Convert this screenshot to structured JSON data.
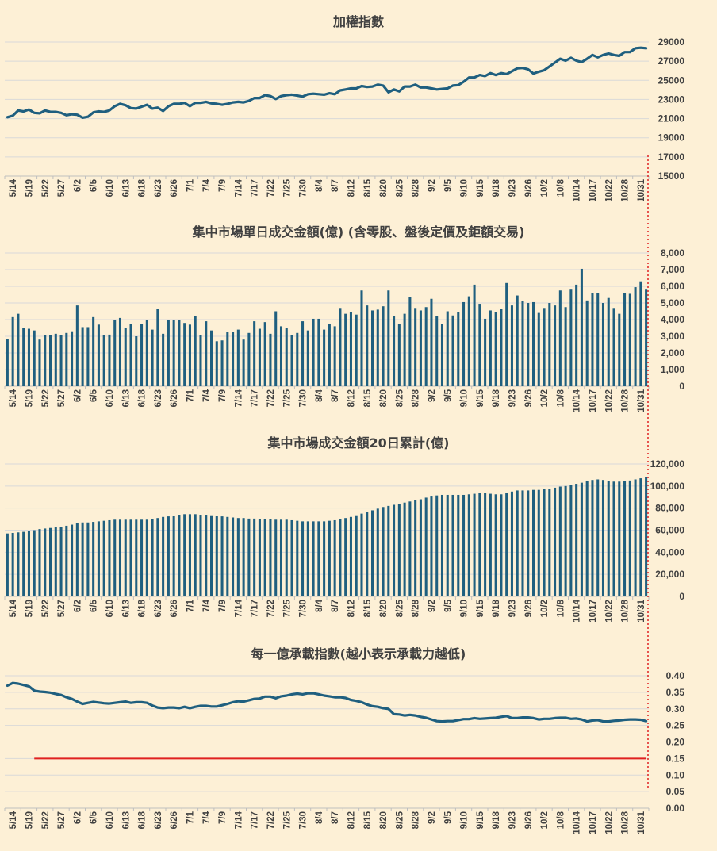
{
  "chart_data": [
    {
      "type": "line",
      "title": "加權指數",
      "color": "#1f5f7f",
      "ylim": [
        15000,
        29000
      ],
      "yticks": [
        "29000",
        "27000",
        "25000",
        "23000",
        "21000",
        "19000",
        "17000",
        "15000"
      ],
      "ytick_values": [
        29000,
        27000,
        25000,
        23000,
        21000,
        19000,
        17000,
        15000
      ],
      "x_tick_labels": [
        "5/14",
        "5/19",
        "5/22",
        "5/27",
        "6/2",
        "6/5",
        "6/10",
        "6/13",
        "6/18",
        "6/23",
        "6/26",
        "7/1",
        "7/4",
        "7/9",
        "7/14",
        "7/17",
        "7/22",
        "7/25",
        "7/30",
        "8/4",
        "8/7",
        "8/12",
        "8/15",
        "8/20",
        "8/25",
        "8/28",
        "9/2",
        "9/5",
        "9/10",
        "9/15",
        "9/18",
        "9/23",
        "9/26",
        "10/2",
        "10/8",
        "10/14",
        "10/17",
        "10/22",
        "10/28",
        "10/31"
      ],
      "values": [
        21150,
        21300,
        21850,
        21750,
        21950,
        21600,
        21550,
        21850,
        21700,
        21700,
        21600,
        21350,
        21450,
        21400,
        21100,
        21200,
        21650,
        21750,
        21700,
        21850,
        22300,
        22550,
        22400,
        22100,
        22050,
        22250,
        22450,
        22050,
        22150,
        21800,
        22300,
        22550,
        22550,
        22650,
        22300,
        22650,
        22650,
        22750,
        22600,
        22550,
        22450,
        22550,
        22700,
        22750,
        22700,
        22850,
        23150,
        23150,
        23450,
        23350,
        23050,
        23350,
        23450,
        23500,
        23400,
        23300,
        23550,
        23600,
        23550,
        23500,
        23650,
        23550,
        23950,
        24050,
        24150,
        24150,
        24400,
        24300,
        24350,
        24550,
        24450,
        23750,
        24050,
        23850,
        24350,
        24350,
        24550,
        24250,
        24250,
        24150,
        24050,
        24100,
        24150,
        24450,
        24500,
        24850,
        25300,
        25300,
        25550,
        25450,
        25750,
        25550,
        25750,
        25650,
        25950,
        26250,
        26300,
        26150,
        25700,
        25900,
        26050,
        26450,
        26850,
        27250,
        27050,
        27350,
        27050,
        26900,
        27250,
        27650,
        27400,
        27650,
        27800,
        27650,
        27550,
        27950,
        27950,
        28350,
        28400,
        28350
      ]
    },
    {
      "type": "bar",
      "title": "集中市場單日成交金額(億) (含零股、盤後定價及鉅額交易)",
      "color": "#1f5f7f",
      "ylim": [
        0,
        8000
      ],
      "yticks": [
        "8,000",
        "7,000",
        "6,000",
        "5,000",
        "4,000",
        "3,000",
        "2,000",
        "1,000",
        "0"
      ],
      "ytick_values": [
        8000,
        7000,
        6000,
        5000,
        4000,
        3000,
        2000,
        1000,
        0
      ],
      "x_tick_labels": [
        "5/14",
        "5/19",
        "5/22",
        "5/27",
        "6/2",
        "6/5",
        "6/10",
        "6/13",
        "6/18",
        "6/23",
        "6/26",
        "7/1",
        "7/4",
        "7/9",
        "7/14",
        "7/17",
        "7/22",
        "7/25",
        "7/30",
        "8/4",
        "8/7",
        "8/12",
        "8/15",
        "8/20",
        "8/25",
        "8/28",
        "9/2",
        "9/5",
        "9/10",
        "9/15",
        "9/18",
        "9/23",
        "9/26",
        "10/2",
        "10/8",
        "10/14",
        "10/17",
        "10/22",
        "10/28",
        "10/31"
      ],
      "values": [
        2850,
        4150,
        4350,
        3500,
        3450,
        3350,
        2800,
        3050,
        3050,
        3150,
        3050,
        3200,
        3300,
        4850,
        3550,
        3550,
        4150,
        3700,
        3050,
        3100,
        4000,
        4100,
        3500,
        3750,
        3000,
        3750,
        4000,
        3400,
        4650,
        3150,
        4000,
        4000,
        4000,
        3800,
        3700,
        4200,
        3050,
        3900,
        3350,
        2700,
        2750,
        3250,
        3250,
        3400,
        2800,
        3200,
        3900,
        3450,
        3850,
        3150,
        4500,
        3600,
        3500,
        3050,
        3200,
        3900,
        3350,
        4050,
        4050,
        3400,
        3750,
        3600,
        4700,
        4350,
        4450,
        4300,
        5750,
        4850,
        4550,
        4600,
        4800,
        5750,
        4200,
        3750,
        4350,
        5350,
        4700,
        4550,
        4750,
        5250,
        4200,
        3750,
        4500,
        4250,
        4450,
        5050,
        5400,
        6100,
        4950,
        4050,
        4550,
        4450,
        4650,
        6200,
        4850,
        5450,
        5100,
        5000,
        5050,
        4400,
        4700,
        5000,
        4850,
        5750,
        4750,
        5800,
        6100,
        7050,
        5150,
        5600,
        5600,
        5000,
        5300,
        4700,
        4350,
        5600,
        5550,
        5950,
        6300,
        5800
      ]
    },
    {
      "type": "bar",
      "title": "集中市場成交金額20日累計(億)",
      "color": "#1f5f7f",
      "ylim": [
        0,
        120000
      ],
      "yticks": [
        "120,000",
        "100,000",
        "80,000",
        "60,000",
        "40,000",
        "20,000",
        "0"
      ],
      "ytick_values": [
        120000,
        100000,
        80000,
        60000,
        40000,
        20000,
        0
      ],
      "x_tick_labels": [
        "5/14",
        "5/19",
        "5/22",
        "5/27",
        "6/2",
        "6/5",
        "6/10",
        "6/13",
        "6/18",
        "6/23",
        "6/26",
        "7/1",
        "7/4",
        "7/9",
        "7/14",
        "7/17",
        "7/22",
        "7/25",
        "7/30",
        "8/4",
        "8/7",
        "8/12",
        "8/15",
        "8/20",
        "8/25",
        "8/28",
        "9/2",
        "9/5",
        "9/10",
        "9/15",
        "9/18",
        "9/23",
        "9/26",
        "10/2",
        "10/8",
        "10/14",
        "10/17",
        "10/22",
        "10/28",
        "10/31"
      ],
      "values": [
        57000,
        57500,
        58000,
        58500,
        59000,
        60000,
        61000,
        61500,
        62000,
        62500,
        63000,
        64000,
        65000,
        66500,
        67000,
        67000,
        67500,
        68000,
        68500,
        69000,
        69500,
        69500,
        69500,
        69500,
        69500,
        69500,
        69500,
        70000,
        71000,
        72000,
        72500,
        73000,
        74000,
        74500,
        74500,
        74500,
        74000,
        74000,
        73500,
        73000,
        72500,
        72000,
        71500,
        71000,
        71000,
        70500,
        70500,
        70000,
        70000,
        70000,
        69500,
        69500,
        69500,
        69000,
        68500,
        68000,
        68000,
        68000,
        68000,
        68000,
        68500,
        69000,
        70000,
        71000,
        72000,
        73500,
        75000,
        76500,
        78000,
        79500,
        81000,
        82000,
        83000,
        84000,
        85000,
        86000,
        87000,
        88000,
        89500,
        90500,
        91500,
        92000,
        92000,
        92000,
        92000,
        92000,
        92500,
        93000,
        93500,
        93500,
        93000,
        92500,
        92500,
        93500,
        95000,
        96000,
        96000,
        96000,
        96500,
        96500,
        97000,
        97500,
        98500,
        99500,
        100000,
        101000,
        102000,
        103000,
        104500,
        105500,
        106000,
        105500,
        104500,
        104000,
        104000,
        104500,
        105000,
        106000,
        107000,
        108000
      ]
    },
    {
      "type": "line",
      "title": "每一億承載指數(越小表示承載力越低)",
      "color": "#1f5f7f",
      "reference_color": "#e02020",
      "reference_value": 0.15,
      "ylim": [
        0.0,
        0.4
      ],
      "yticks": [
        "0.40",
        "0.35",
        "0.30",
        "0.25",
        "0.20",
        "0.15",
        "0.10",
        "0.05",
        "0.00"
      ],
      "ytick_values": [
        0.4,
        0.35,
        0.3,
        0.25,
        0.2,
        0.15,
        0.1,
        0.05,
        0.0
      ],
      "x_tick_labels": [
        "5/14",
        "5/19",
        "5/22",
        "5/27",
        "6/2",
        "6/5",
        "6/10",
        "6/13",
        "6/18",
        "6/23",
        "6/26",
        "7/1",
        "7/4",
        "7/9",
        "7/14",
        "7/17",
        "7/22",
        "7/25",
        "7/30",
        "8/4",
        "8/7",
        "8/12",
        "8/15",
        "8/20",
        "8/25",
        "8/28",
        "9/2",
        "9/5",
        "9/10",
        "9/15",
        "9/18",
        "9/23",
        "9/26",
        "10/2",
        "10/8",
        "10/14",
        "10/17",
        "10/22",
        "10/28",
        "10/31"
      ],
      "values": [
        0.37,
        0.378,
        0.376,
        0.372,
        0.368,
        0.355,
        0.352,
        0.351,
        0.349,
        0.345,
        0.342,
        0.335,
        0.33,
        0.322,
        0.315,
        0.318,
        0.321,
        0.319,
        0.317,
        0.316,
        0.318,
        0.32,
        0.322,
        0.318,
        0.32,
        0.32,
        0.318,
        0.31,
        0.304,
        0.302,
        0.304,
        0.304,
        0.302,
        0.306,
        0.302,
        0.306,
        0.309,
        0.309,
        0.307,
        0.307,
        0.311,
        0.315,
        0.32,
        0.323,
        0.322,
        0.326,
        0.33,
        0.331,
        0.337,
        0.337,
        0.332,
        0.338,
        0.34,
        0.344,
        0.346,
        0.344,
        0.347,
        0.347,
        0.344,
        0.34,
        0.338,
        0.335,
        0.335,
        0.333,
        0.327,
        0.324,
        0.32,
        0.313,
        0.308,
        0.306,
        0.302,
        0.3,
        0.284,
        0.283,
        0.28,
        0.282,
        0.28,
        0.276,
        0.273,
        0.268,
        0.263,
        0.262,
        0.263,
        0.263,
        0.266,
        0.269,
        0.269,
        0.272,
        0.27,
        0.271,
        0.272,
        0.273,
        0.276,
        0.278,
        0.272,
        0.272,
        0.274,
        0.274,
        0.272,
        0.268,
        0.27,
        0.27,
        0.272,
        0.273,
        0.273,
        0.27,
        0.271,
        0.268,
        0.262,
        0.265,
        0.266,
        0.262,
        0.262,
        0.264,
        0.265,
        0.267,
        0.268,
        0.268,
        0.267,
        0.263
      ]
    }
  ]
}
